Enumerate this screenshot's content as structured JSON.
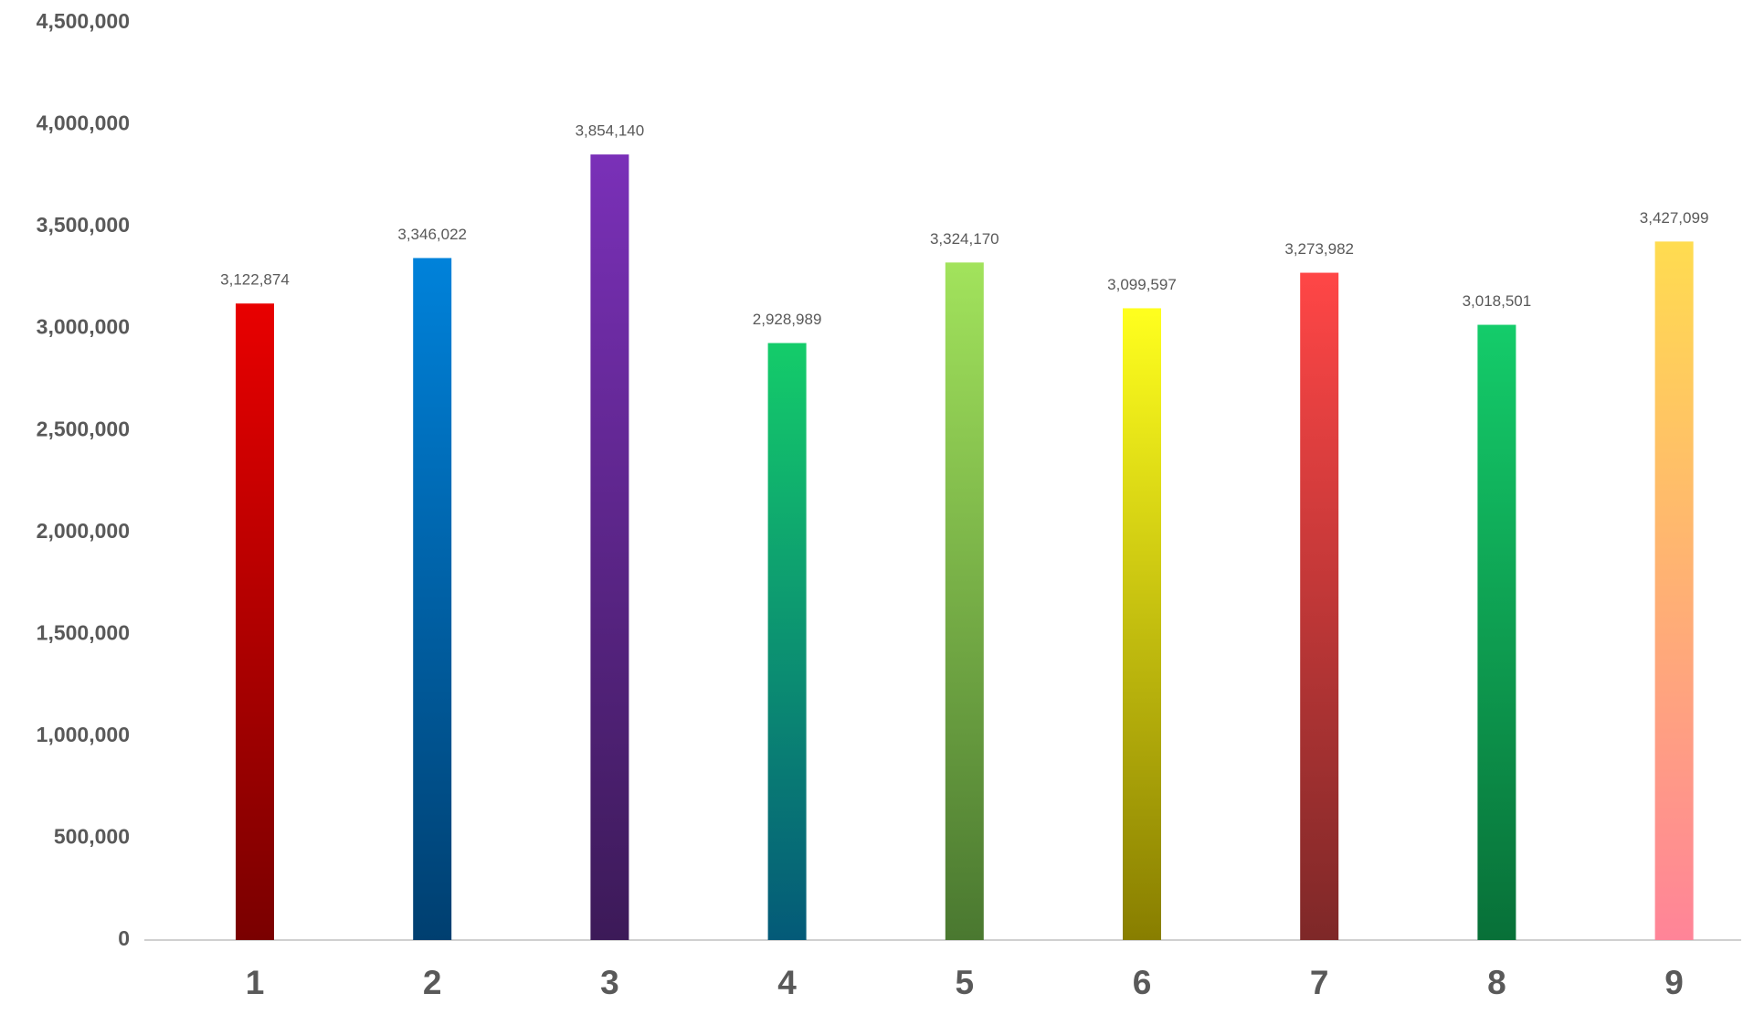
{
  "chart_data": {
    "type": "bar",
    "categories": [
      "1",
      "2",
      "3",
      "4",
      "5",
      "6",
      "7",
      "8",
      "9"
    ],
    "values": [
      3122874,
      3346022,
      3854140,
      2928989,
      3324170,
      3099597,
      3273982,
      3018501,
      3427099
    ],
    "value_labels": [
      "3,122,874",
      "3,346,022",
      "3,854,140",
      "2,928,989",
      "3,324,170",
      "3,099,597",
      "3,273,982",
      "3,018,501",
      "3,427,099"
    ],
    "colors": [
      [
        "#e80000",
        "#7a0000"
      ],
      [
        "#0082da",
        "#003f70"
      ],
      [
        "#7a30b8",
        "#3c1a58"
      ],
      [
        "#14cc6a",
        "#045a78"
      ],
      [
        "#a2e35c",
        "#4a7830"
      ],
      [
        "#ffff1e",
        "#887e00"
      ],
      [
        "#ff4646",
        "#7e2828"
      ],
      [
        "#14cc6a",
        "#087038"
      ],
      [
        "#ffdc50",
        "#ff8498"
      ]
    ],
    "ylim": [
      0,
      4500000
    ],
    "yticks": [
      0,
      {
        "value": 500000,
        "label": "500,000"
      },
      {
        "value": 1000000,
        "label": "1,000,000"
      },
      {
        "value": 1500000,
        "label": "1,500,000"
      },
      {
        "value": 2000000,
        "label": "2,000,000"
      },
      {
        "value": 2500000,
        "label": "2,500,000"
      },
      {
        "value": 3000000,
        "label": "3,000,000"
      },
      {
        "value": 3500000,
        "label": "3,500,000"
      },
      {
        "value": 4000000,
        "label": "4,000,000"
      },
      {
        "value": 4500000,
        "label": "4,500,000"
      }
    ],
    "grid": false
  }
}
